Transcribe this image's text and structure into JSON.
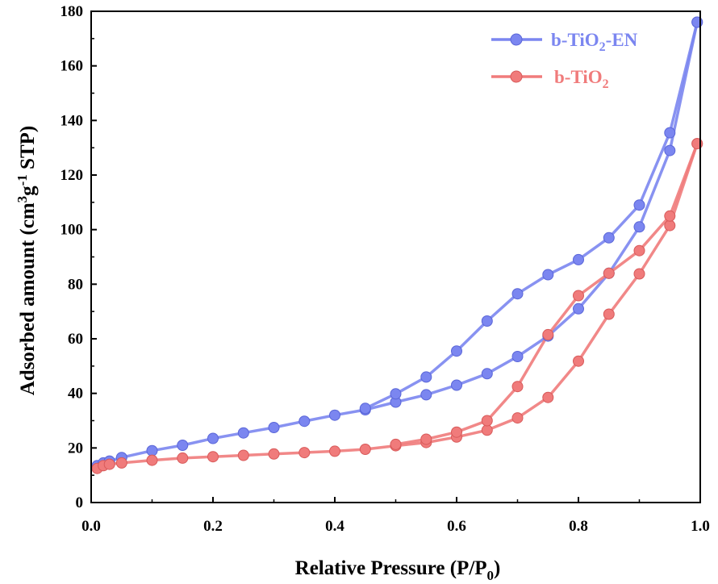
{
  "chart_data": {
    "type": "line",
    "xlabel": {
      "main": "Relative Pressure (P/P",
      "sub": "0",
      "tail": ")"
    },
    "ylabel": {
      "main": "Adsorbed amount (cm",
      "sup1": "3",
      "mid": "g",
      "sup2": "-1",
      "tail": " STP)"
    },
    "xlim": [
      0.0,
      1.0
    ],
    "ylim": [
      0,
      180
    ],
    "x_ticks": [
      "0.0",
      "0.2",
      "0.4",
      "0.6",
      "0.8",
      "1.0"
    ],
    "y_ticks": [
      "0",
      "20",
      "40",
      "60",
      "80",
      "100",
      "120",
      "140",
      "160",
      "180"
    ],
    "grid": false,
    "legend_position": "top-right",
    "series": [
      {
        "name": {
          "main": "b-TiO",
          "sub": "2",
          "tail": "-EN"
        },
        "color": "#7b86f0",
        "adsorption": {
          "x": [
            0.01,
            0.02,
            0.03,
            0.05,
            0.1,
            0.15,
            0.2,
            0.25,
            0.3,
            0.35,
            0.4,
            0.45,
            0.5,
            0.55,
            0.6,
            0.65,
            0.7,
            0.75,
            0.8,
            0.85,
            0.9,
            0.95,
            0.995
          ],
          "y": [
            13.5,
            14.5,
            15.2,
            16.5,
            19.0,
            21.0,
            23.5,
            25.5,
            27.5,
            29.8,
            32.0,
            34.0,
            36.8,
            39.5,
            43.0,
            47.2,
            53.5,
            61.0,
            71.0,
            84.0,
            101.0,
            129.0,
            176.0
          ]
        },
        "desorption": {
          "x": [
            0.995,
            0.95,
            0.9,
            0.85,
            0.8,
            0.75,
            0.7,
            0.65,
            0.6,
            0.55,
            0.5,
            0.45
          ],
          "y": [
            176.0,
            135.5,
            109.0,
            97.0,
            89.0,
            83.5,
            76.5,
            66.5,
            55.5,
            46.0,
            39.8,
            34.5
          ]
        }
      },
      {
        "name": {
          "main": "b-TiO",
          "sub": "2",
          "tail": ""
        },
        "color": "#f07b7b",
        "adsorption": {
          "x": [
            0.01,
            0.02,
            0.03,
            0.05,
            0.1,
            0.15,
            0.2,
            0.25,
            0.3,
            0.35,
            0.4,
            0.45,
            0.5,
            0.55,
            0.6,
            0.65,
            0.7,
            0.75,
            0.8,
            0.85,
            0.9,
            0.95,
            0.995
          ],
          "y": [
            12.5,
            13.5,
            14.0,
            14.5,
            15.5,
            16.3,
            16.8,
            17.3,
            17.8,
            18.3,
            18.8,
            19.5,
            20.8,
            22.0,
            24.0,
            26.5,
            31.0,
            38.5,
            51.8,
            69.0,
            83.8,
            101.5,
            131.5
          ]
        },
        "desorption": {
          "x": [
            0.995,
            0.95,
            0.9,
            0.85,
            0.8,
            0.75,
            0.7,
            0.65,
            0.6,
            0.55,
            0.5
          ],
          "y": [
            131.5,
            105.0,
            92.3,
            84.0,
            75.8,
            61.5,
            42.5,
            30.0,
            25.8,
            23.2,
            21.3
          ]
        }
      }
    ]
  }
}
